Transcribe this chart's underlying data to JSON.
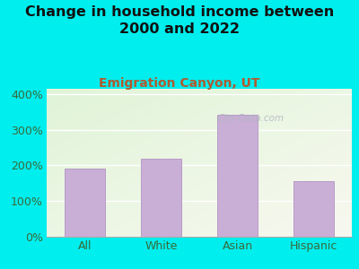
{
  "title": "Change in household income between\n2000 and 2022",
  "subtitle": "Emigration Canyon, UT",
  "categories": [
    "All",
    "White",
    "Asian",
    "Hispanic"
  ],
  "values": [
    190,
    220,
    343,
    155
  ],
  "bar_color": "#c9aed6",
  "bar_edge_color": "#b89cc8",
  "title_fontsize": 11.5,
  "subtitle_fontsize": 10,
  "subtitle_color": "#b05a30",
  "title_color": "#111111",
  "tick_label_fontsize": 9,
  "tick_label_color": "#3a6a3a",
  "ytick_labels": [
    "0%",
    "100%",
    "200%",
    "300%",
    "400%"
  ],
  "ytick_values": [
    0,
    100,
    200,
    300,
    400
  ],
  "ylim": [
    0,
    415
  ],
  "bg_outer": "#00EEEE",
  "bg_plot_color1": "#e8f5e0",
  "bg_plot_color2": "#f0f8ea",
  "bg_plot_color3": "#f8f8f0",
  "watermark": "City-Data.com",
  "watermark_color": "#b0b8c0",
  "grid_color": "#ffffff",
  "bottom_spine_color": "#aaaaaa"
}
